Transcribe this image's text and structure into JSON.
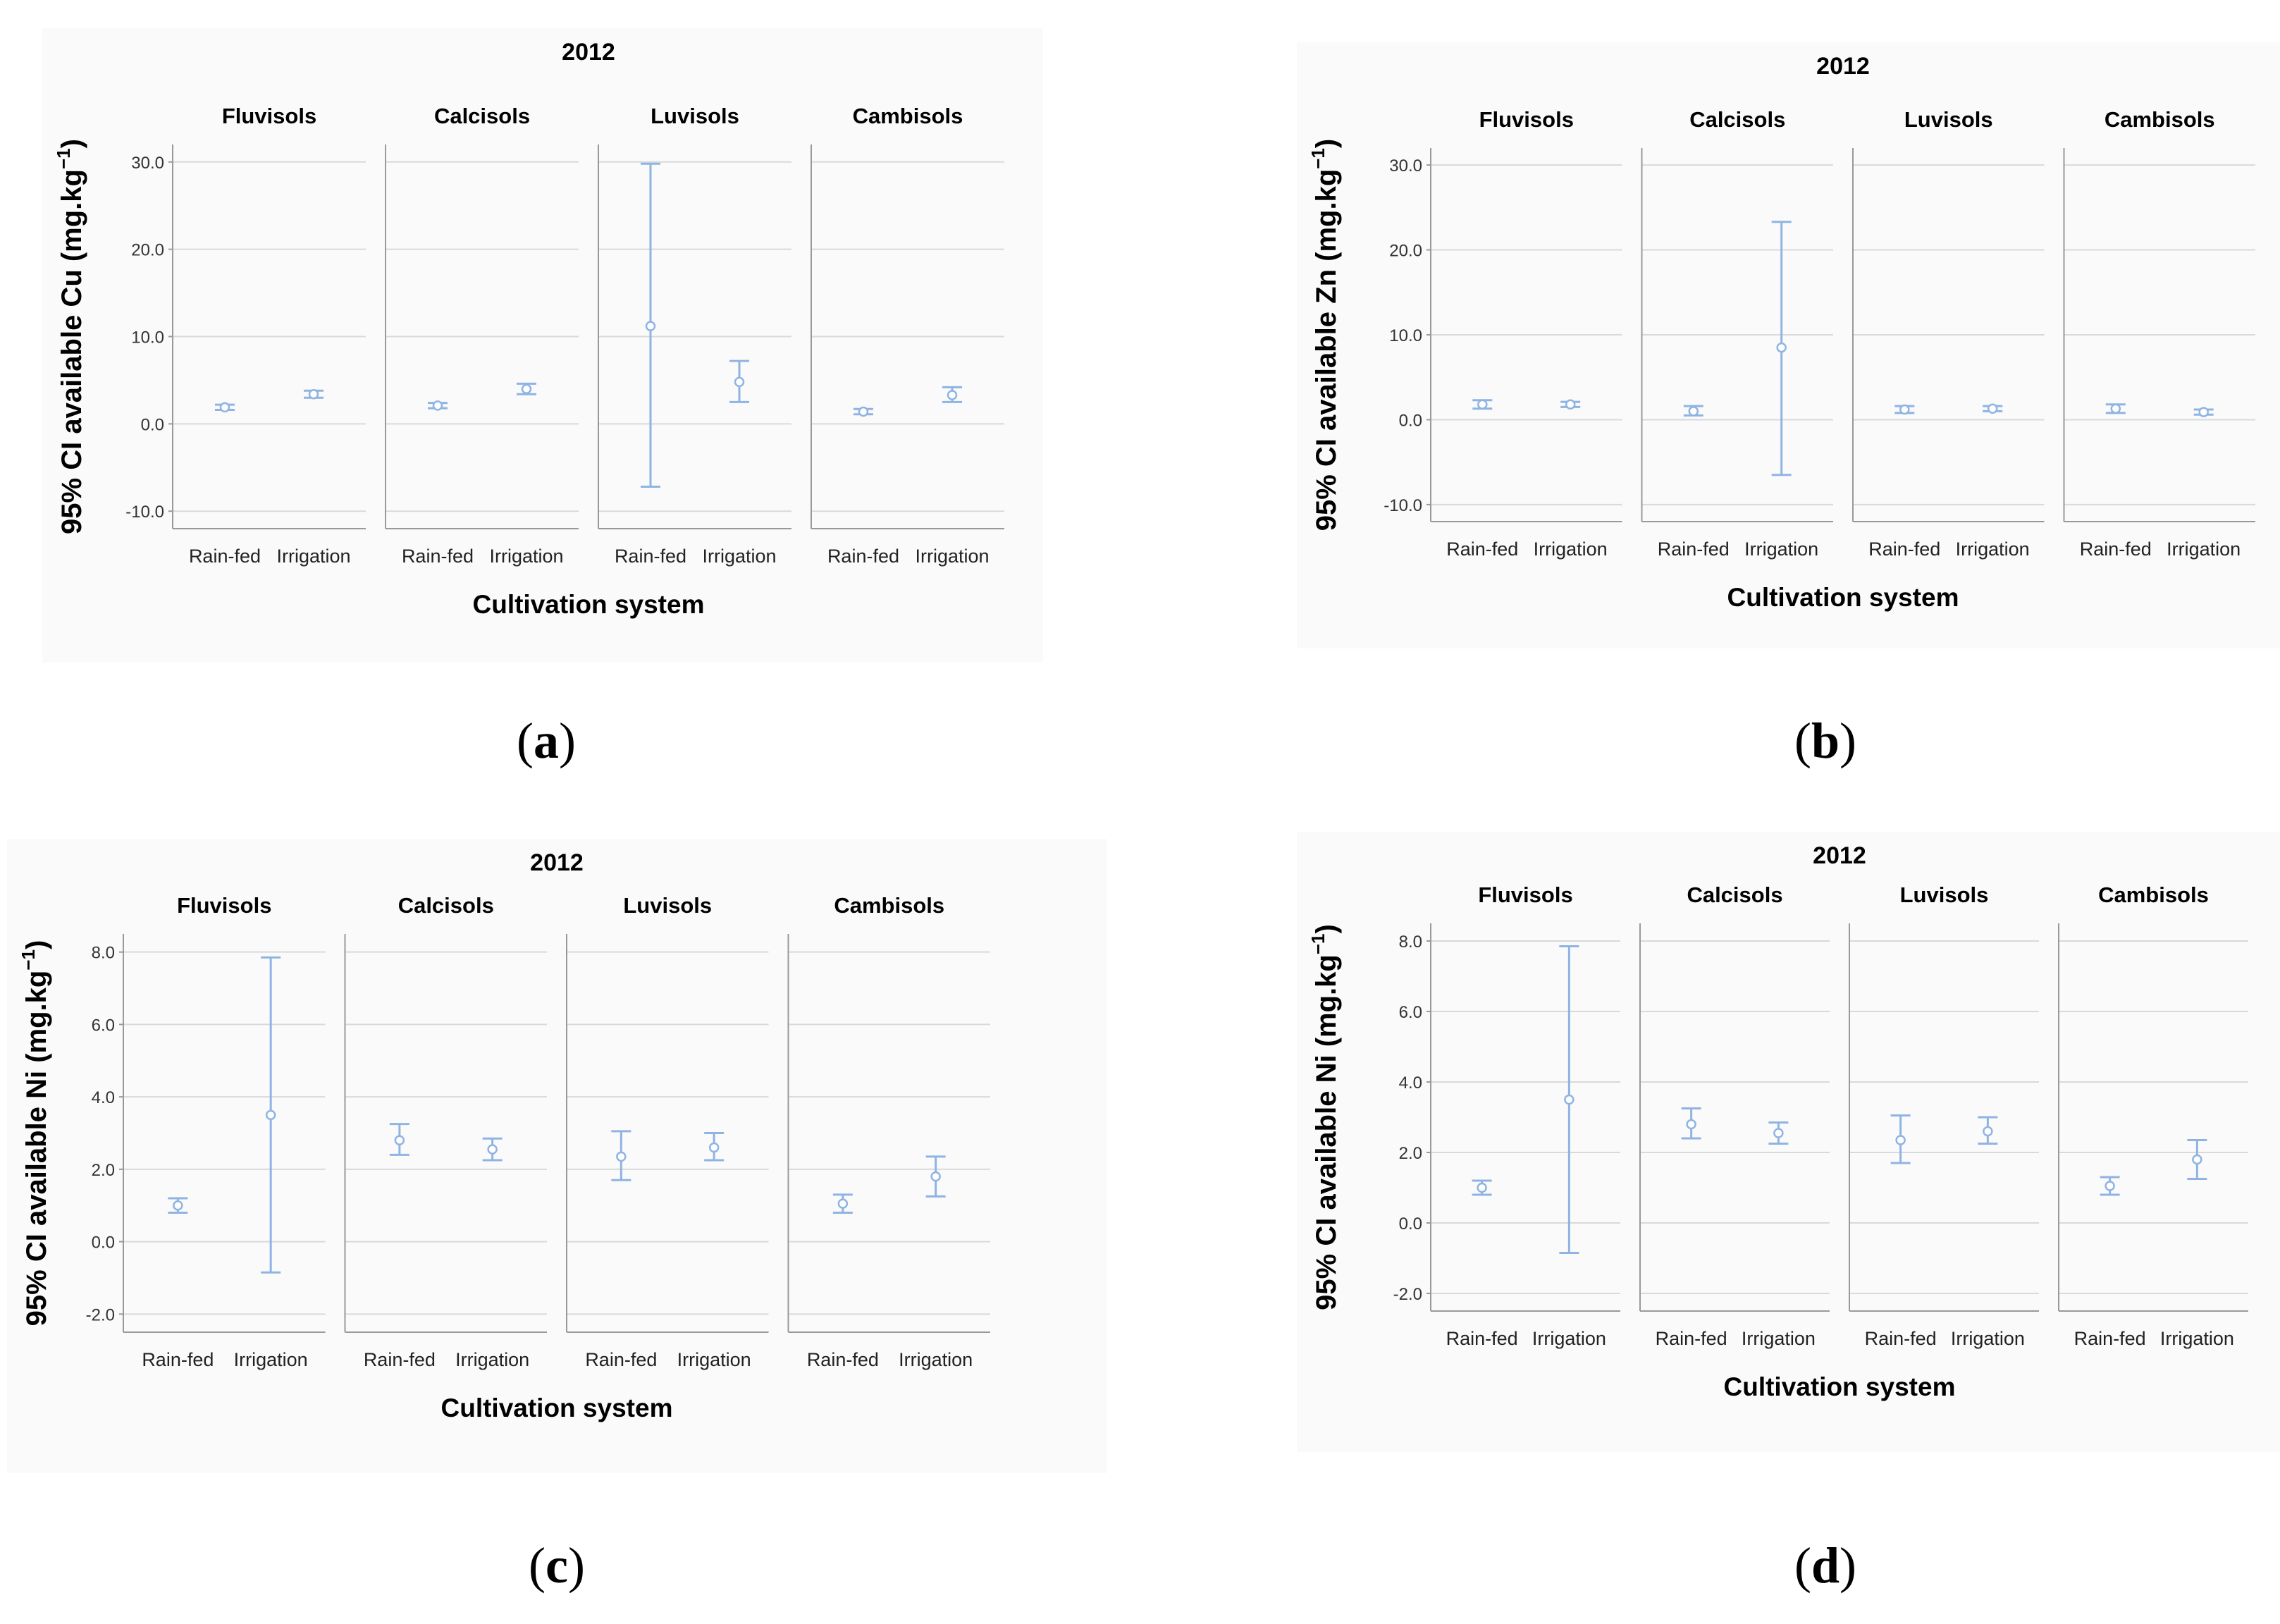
{
  "chart_data": [
    {
      "type": "error-bar",
      "panel_label": "a",
      "title": "2012",
      "ylabel": "95% CI available Cu (mg.kg",
      "ylabel_sup": "−1",
      "ylabel_close": ")",
      "xlabel": "Cultivation system",
      "ylim": [
        -12,
        32
      ],
      "yticks": [
        30.0,
        20.0,
        10.0,
        0.0,
        -10.0
      ],
      "facets": [
        {
          "name": "Fluvisols",
          "groups": [
            {
              "label": "Rain-fed",
              "mean": 1.9,
              "lower": 1.6,
              "upper": 2.2
            },
            {
              "label": "Irrigation",
              "mean": 3.4,
              "lower": 3.0,
              "upper": 3.8
            }
          ]
        },
        {
          "name": "Calcisols",
          "groups": [
            {
              "label": "Rain-fed",
              "mean": 2.1,
              "lower": 1.8,
              "upper": 2.4
            },
            {
              "label": "Irrigation",
              "mean": 4.0,
              "lower": 3.4,
              "upper": 4.6
            }
          ]
        },
        {
          "name": "Luvisols",
          "groups": [
            {
              "label": "Rain-fed",
              "mean": 11.2,
              "lower": -7.2,
              "upper": 29.8
            },
            {
              "label": "Irrigation",
              "mean": 4.8,
              "lower": 2.5,
              "upper": 7.2
            }
          ]
        },
        {
          "name": "Cambisols",
          "groups": [
            {
              "label": "Rain-fed",
              "mean": 1.4,
              "lower": 1.1,
              "upper": 1.7
            },
            {
              "label": "Irrigation",
              "mean": 3.3,
              "lower": 2.5,
              "upper": 4.2
            }
          ]
        }
      ]
    },
    {
      "type": "error-bar",
      "panel_label": "b",
      "title": "2012",
      "ylabel": "95% CI available Zn (mg.kg",
      "ylabel_sup": "−1",
      "ylabel_close": ")",
      "xlabel": "Cultivation system",
      "ylim": [
        -12,
        32
      ],
      "yticks": [
        30.0,
        20.0,
        10.0,
        0.0,
        -10.0
      ],
      "facets": [
        {
          "name": "Fluvisols",
          "groups": [
            {
              "label": "Rain-fed",
              "mean": 1.8,
              "lower": 1.3,
              "upper": 2.3
            },
            {
              "label": "Irrigation",
              "mean": 1.8,
              "lower": 1.5,
              "upper": 2.1
            }
          ]
        },
        {
          "name": "Calcisols",
          "groups": [
            {
              "label": "Rain-fed",
              "mean": 1.0,
              "lower": 0.5,
              "upper": 1.6
            },
            {
              "label": "Irrigation",
              "mean": 8.5,
              "lower": -6.5,
              "upper": 23.3
            }
          ]
        },
        {
          "name": "Luvisols",
          "groups": [
            {
              "label": "Rain-fed",
              "mean": 1.2,
              "lower": 0.8,
              "upper": 1.6
            },
            {
              "label": "Irrigation",
              "mean": 1.3,
              "lower": 1.0,
              "upper": 1.6
            }
          ]
        },
        {
          "name": "Cambisols",
          "groups": [
            {
              "label": "Rain-fed",
              "mean": 1.3,
              "lower": 0.8,
              "upper": 1.8
            },
            {
              "label": "Irrigation",
              "mean": 0.9,
              "lower": 0.6,
              "upper": 1.2
            }
          ]
        }
      ]
    },
    {
      "type": "error-bar",
      "panel_label": "c",
      "title": "2012",
      "ylabel": "95% CI available Ni (mg.kg",
      "ylabel_sup": "−1",
      "ylabel_close": ")",
      "xlabel": "Cultivation system",
      "ylim": [
        -2.5,
        8.5
      ],
      "yticks": [
        8.0,
        6.0,
        4.0,
        2.0,
        0.0,
        -2.0
      ],
      "facets": [
        {
          "name": "Fluvisols",
          "groups": [
            {
              "label": "Rain-fed",
              "mean": 1.0,
              "lower": 0.8,
              "upper": 1.2
            },
            {
              "label": "Irrigation",
              "mean": 3.5,
              "lower": -0.85,
              "upper": 7.85
            }
          ]
        },
        {
          "name": "Calcisols",
          "groups": [
            {
              "label": "Rain-fed",
              "mean": 2.8,
              "lower": 2.4,
              "upper": 3.25
            }
          ]
        },
        {
          "name": "Luvisols",
          "groups": [
            {
              "label": "Rain-fed",
              "mean": 2.35,
              "lower": 1.7,
              "upper": 3.05
            },
            {
              "label": "Irrigation",
              "mean": 2.6,
              "lower": 2.25,
              "upper": 3.0
            }
          ]
        },
        {
          "name": "Cambisols",
          "groups": [
            {
              "label": "Rain-fed",
              "mean": 1.05,
              "lower": 0.8,
              "upper": 1.3
            },
            {
              "label": "Irrigation",
              "mean": 1.8,
              "lower": 1.25,
              "upper": 2.35
            }
          ]
        }
      ]
    },
    {
      "type": "error-bar",
      "panel_label": "d",
      "title": "2012",
      "ylabel": "95% CI available Ni (mg.kg",
      "ylabel_sup": "−1",
      "ylabel_close": ")",
      "xlabel": "Cultivation system",
      "ylim": [
        -2.5,
        8.5
      ],
      "yticks": [
        8.0,
        6.0,
        4.0,
        2.0,
        0.0,
        -2.0
      ],
      "facets": [
        {
          "name": "Fluvisols",
          "groups": [
            {
              "label": "Rain-fed",
              "mean": 1.0,
              "lower": 0.8,
              "upper": 1.2
            },
            {
              "label": "Irrigation",
              "mean": 3.5,
              "lower": -0.85,
              "upper": 7.85
            }
          ]
        },
        {
          "name": "Calcisols",
          "groups": [
            {
              "label": "Rain-fed",
              "mean": 2.8,
              "lower": 2.4,
              "upper": 3.25
            },
            {
              "label": "Irrigation",
              "mean": 2.55,
              "lower": 2.25,
              "upper": 2.85
            }
          ]
        },
        {
          "name": "Luvisols",
          "groups": [
            {
              "label": "Rain-fed",
              "mean": 2.35,
              "lower": 1.7,
              "upper": 3.05
            },
            {
              "label": "Irrigation",
              "mean": 2.6,
              "lower": 2.25,
              "upper": 3.0
            }
          ]
        },
        {
          "name": "Cambisols",
          "groups": [
            {
              "label": "Rain-fed",
              "mean": 1.05,
              "lower": 0.8,
              "upper": 1.3
            },
            {
              "label": "Irrigation",
              "mean": 1.8,
              "lower": 1.25,
              "upper": 2.35
            }
          ]
        }
      ]
    }
  ],
  "style": {
    "series_color": "#8fb4e3",
    "grid_color": "#d9d9d9",
    "axis_color": "#999999",
    "text_color": "#000000",
    "panel_bg": "#fafafa"
  }
}
